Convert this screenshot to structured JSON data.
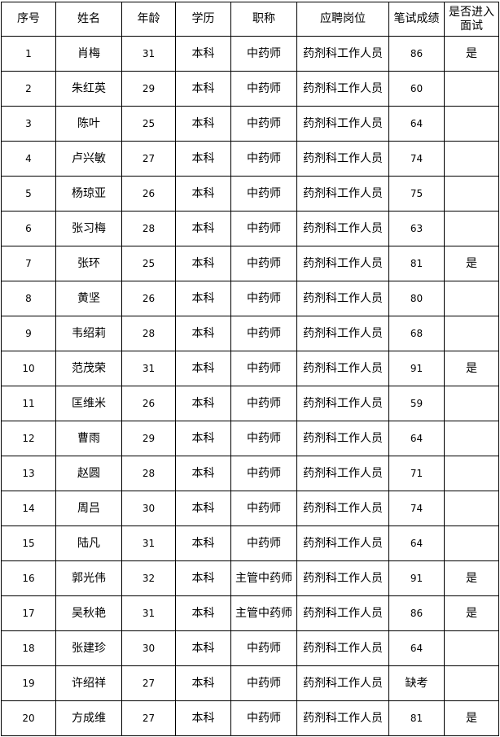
{
  "table": {
    "headers": [
      "序号",
      "姓名",
      "年龄",
      "学历",
      "职称",
      "应聘岗位",
      "笔试成绩",
      "是否进入面试"
    ],
    "rows": [
      [
        "1",
        "肖梅",
        "31",
        "本科",
        "中药师",
        "药剂科工作人员",
        "86",
        "是"
      ],
      [
        "2",
        "朱红英",
        "29",
        "本科",
        "中药师",
        "药剂科工作人员",
        "60",
        ""
      ],
      [
        "3",
        "陈叶",
        "25",
        "本科",
        "中药师",
        "药剂科工作人员",
        "64",
        ""
      ],
      [
        "4",
        "卢兴敏",
        "27",
        "本科",
        "中药师",
        "药剂科工作人员",
        "74",
        ""
      ],
      [
        "5",
        "杨琼亚",
        "26",
        "本科",
        "中药师",
        "药剂科工作人员",
        "75",
        ""
      ],
      [
        "6",
        "张习梅",
        "28",
        "本科",
        "中药师",
        "药剂科工作人员",
        "63",
        ""
      ],
      [
        "7",
        "张环",
        "25",
        "本科",
        "中药师",
        "药剂科工作人员",
        "81",
        "是"
      ],
      [
        "8",
        "黄坚",
        "26",
        "本科",
        "中药师",
        "药剂科工作人员",
        "80",
        ""
      ],
      [
        "9",
        "韦绍莉",
        "28",
        "本科",
        "中药师",
        "药剂科工作人员",
        "68",
        ""
      ],
      [
        "10",
        "范茂荣",
        "31",
        "本科",
        "中药师",
        "药剂科工作人员",
        "91",
        "是"
      ],
      [
        "11",
        "匡维米",
        "26",
        "本科",
        "中药师",
        "药剂科工作人员",
        "59",
        ""
      ],
      [
        "12",
        "曹雨",
        "29",
        "本科",
        "中药师",
        "药剂科工作人员",
        "64",
        ""
      ],
      [
        "13",
        "赵圆",
        "28",
        "本科",
        "中药师",
        "药剂科工作人员",
        "71",
        ""
      ],
      [
        "14",
        "周吕",
        "30",
        "本科",
        "中药师",
        "药剂科工作人员",
        "74",
        ""
      ],
      [
        "15",
        "陆凡",
        "31",
        "本科",
        "中药师",
        "药剂科工作人员",
        "64",
        ""
      ],
      [
        "16",
        "郭光伟",
        "32",
        "本科",
        "主管中药师",
        "药剂科工作人员",
        "91",
        "是"
      ],
      [
        "17",
        "吴秋艳",
        "31",
        "本科",
        "主管中药师",
        "药剂科工作人员",
        "86",
        "是"
      ],
      [
        "18",
        "张建珍",
        "30",
        "本科",
        "中药师",
        "药剂科工作人员",
        "64",
        ""
      ],
      [
        "19",
        "许绍祥",
        "27",
        "本科",
        "中药师",
        "药剂科工作人员",
        "缺考",
        ""
      ],
      [
        "20",
        "方成维",
        "27",
        "本科",
        "中药师",
        "药剂科工作人员",
        "81",
        "是"
      ]
    ]
  }
}
